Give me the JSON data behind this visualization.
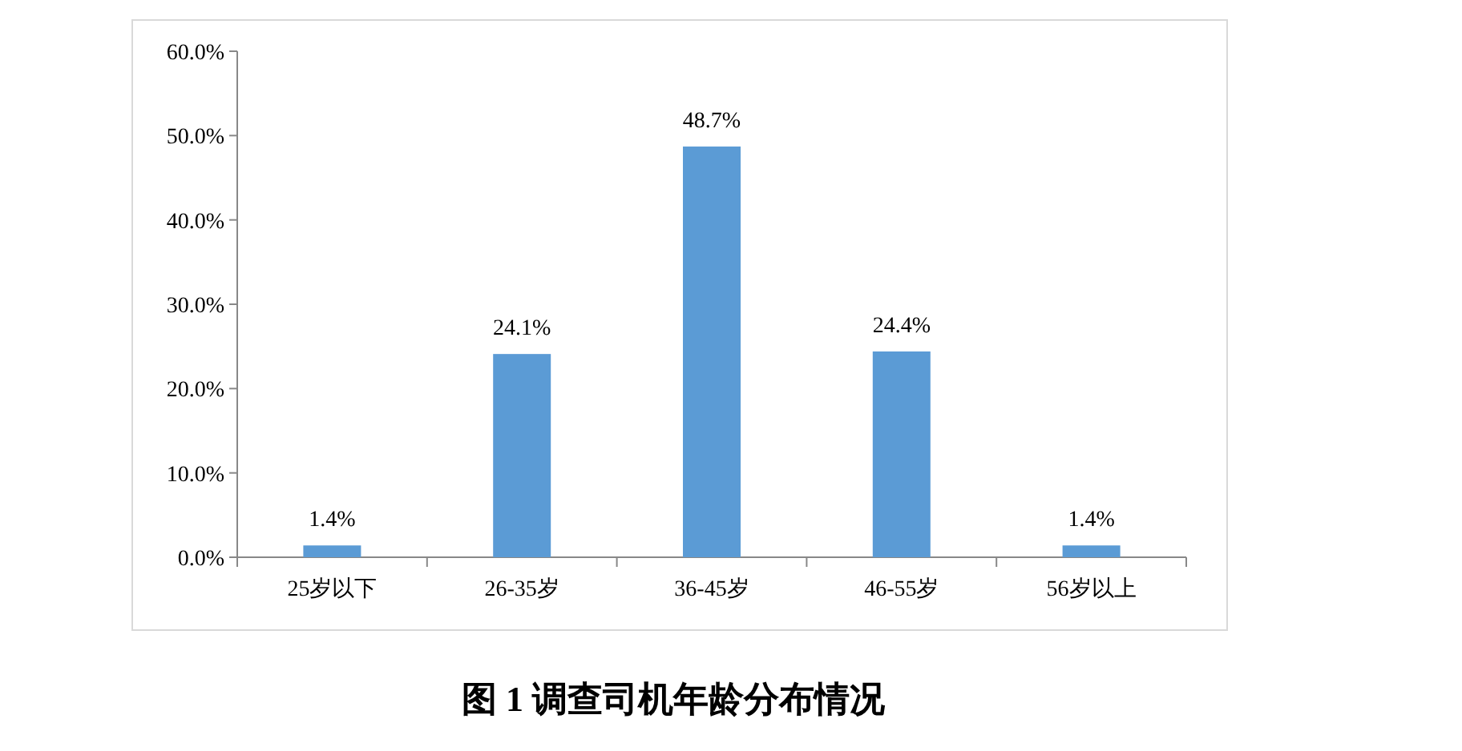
{
  "chart_data": {
    "type": "bar",
    "title": "图 1  调查司机年龄分布情况",
    "categories": [
      "25岁以下",
      "26-35岁",
      "36-45岁",
      "46-55岁",
      "56岁以上"
    ],
    "values": [
      1.4,
      24.1,
      48.7,
      24.4,
      1.4
    ],
    "value_labels": [
      "1.4%",
      "24.1%",
      "48.7%",
      "24.4%",
      "1.4%"
    ],
    "color": "#5b9bd5",
    "ylim": [
      0,
      60
    ],
    "yticks": [
      {
        "value": 0,
        "label": "0.0%"
      },
      {
        "value": 10,
        "label": "10.0%"
      },
      {
        "value": 20,
        "label": "20.0%"
      },
      {
        "value": 30,
        "label": "30.0%"
      },
      {
        "value": 40,
        "label": "40.0%"
      },
      {
        "value": 50,
        "label": "50.0%"
      },
      {
        "value": 60,
        "label": "60.0%"
      }
    ],
    "grid": false
  }
}
